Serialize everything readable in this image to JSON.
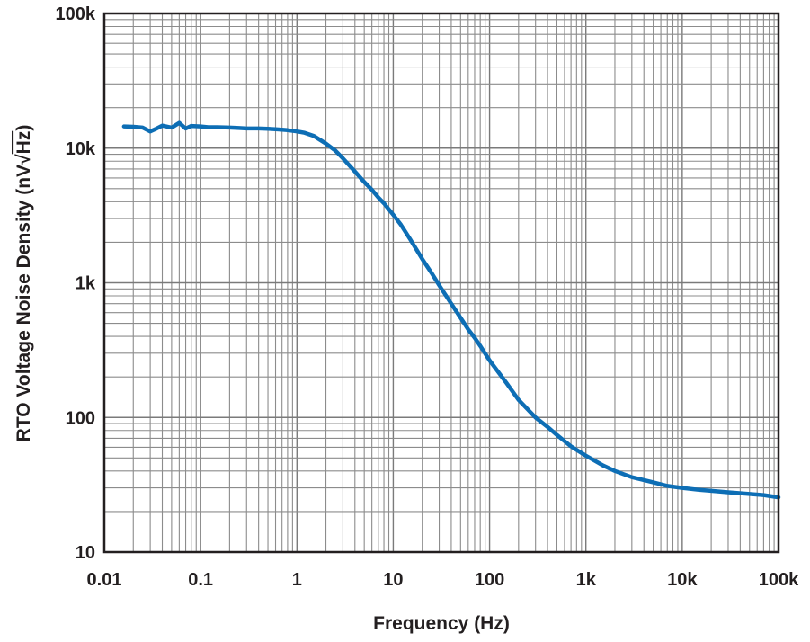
{
  "chart_data": {
    "type": "line",
    "xscale": "log",
    "yscale": "log",
    "xlim": [
      0.01,
      100000
    ],
    "ylim": [
      10,
      100000
    ],
    "xlabel": "Frequency (Hz)",
    "ylabel": "RTO Voltage Noise Density (nV/√Hz)",
    "ylabel_parts": {
      "prefix": "RTO Voltage Noise Density (nV",
      "radical": "√",
      "radicand": "Hz",
      "suffix": ")"
    },
    "x_ticks": [
      {
        "value": 0.01,
        "label": "0.01"
      },
      {
        "value": 0.1,
        "label": "0.1"
      },
      {
        "value": 1,
        "label": "1"
      },
      {
        "value": 10,
        "label": "10"
      },
      {
        "value": 100,
        "label": "100"
      },
      {
        "value": 1000,
        "label": "1k"
      },
      {
        "value": 10000,
        "label": "10k"
      },
      {
        "value": 100000,
        "label": "100k"
      }
    ],
    "y_ticks": [
      {
        "value": 10,
        "label": "10"
      },
      {
        "value": 100,
        "label": "100"
      },
      {
        "value": 1000,
        "label": "1k"
      },
      {
        "value": 10000,
        "label": "10k"
      },
      {
        "value": 100000,
        "label": "100k"
      }
    ],
    "grid": true,
    "series": [
      {
        "name": "RTO voltage noise density",
        "color": "#0d6eb5",
        "x": [
          0.016,
          0.02,
          0.025,
          0.03,
          0.035,
          0.04,
          0.05,
          0.06,
          0.07,
          0.08,
          0.1,
          0.12,
          0.15,
          0.2,
          0.25,
          0.3,
          0.4,
          0.5,
          0.6,
          0.7,
          0.8,
          1,
          1.2,
          1.5,
          2,
          2.5,
          3,
          4,
          5,
          6,
          7,
          8,
          10,
          12,
          15,
          20,
          25,
          30,
          40,
          50,
          60,
          70,
          80,
          100,
          150,
          200,
          300,
          400,
          500,
          700,
          1000,
          1500,
          2000,
          3000,
          5000,
          7000,
          10000,
          15000,
          20000,
          30000,
          50000,
          70000,
          100000
        ],
        "y": [
          14500,
          14400,
          14200,
          13300,
          14000,
          14700,
          14200,
          15400,
          14000,
          14600,
          14500,
          14300,
          14300,
          14200,
          14100,
          14000,
          14000,
          13900,
          13800,
          13700,
          13600,
          13300,
          13000,
          12300,
          10800,
          9600,
          8400,
          6700,
          5600,
          4900,
          4300,
          3900,
          3200,
          2700,
          2100,
          1500,
          1180,
          960,
          700,
          550,
          450,
          390,
          340,
          265,
          180,
          135,
          100,
          85,
          74,
          61,
          52,
          44,
          40,
          36,
          33,
          31,
          30,
          29,
          28.5,
          27.8,
          27,
          26.5,
          25.5
        ]
      }
    ]
  }
}
